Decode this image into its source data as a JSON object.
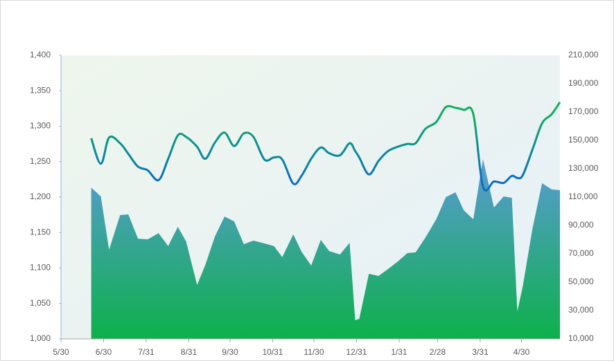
{
  "chart_data": {
    "type": "line_area",
    "x": [
      22,
      29,
      35,
      43,
      49,
      56,
      63,
      71,
      78,
      85,
      91,
      99,
      105,
      112,
      119,
      126,
      133,
      140,
      148,
      155,
      161,
      169,
      175,
      182,
      189,
      195,
      203,
      210,
      214,
      217,
      224,
      231,
      238,
      245,
      252,
      258,
      265,
      273,
      280,
      287,
      293,
      300,
      307,
      315,
      322,
      328,
      332,
      336,
      343,
      350,
      357,
      363
    ],
    "xlim": [
      0,
      363
    ],
    "xticks": [
      {
        "value": 0,
        "label": "5/30"
      },
      {
        "value": 31,
        "label": "6/30"
      },
      {
        "value": 62,
        "label": "7/31"
      },
      {
        "value": 93,
        "label": "8/31"
      },
      {
        "value": 123,
        "label": "9/30"
      },
      {
        "value": 154,
        "label": "10/31"
      },
      {
        "value": 184,
        "label": "11/30"
      },
      {
        "value": 215,
        "label": "12/31"
      },
      {
        "value": 246,
        "label": "1/31"
      },
      {
        "value": 274,
        "label": "2/28"
      },
      {
        "value": 305,
        "label": "3/31"
      },
      {
        "value": 335,
        "label": "4/30"
      }
    ],
    "ylim": [
      1000,
      1400
    ],
    "yticks": [
      {
        "value": 1000,
        "label": "1,000"
      },
      {
        "value": 1050,
        "label": "1,050"
      },
      {
        "value": 1100,
        "label": "1,100"
      },
      {
        "value": 1150,
        "label": "1,150"
      },
      {
        "value": 1200,
        "label": "1,200"
      },
      {
        "value": 1250,
        "label": "1,250"
      },
      {
        "value": 1300,
        "label": "1,300"
      },
      {
        "value": 1350,
        "label": "1,350"
      },
      {
        "value": 1400,
        "label": "1,400"
      }
    ],
    "y2lim": [
      10000,
      210000
    ],
    "y2ticks": [
      {
        "value": 10000,
        "label": "10,000"
      },
      {
        "value": 30000,
        "label": "30,000"
      },
      {
        "value": 50000,
        "label": "50,000"
      },
      {
        "value": 70000,
        "label": "70,000"
      },
      {
        "value": 90000,
        "label": "90,000"
      },
      {
        "value": 110000,
        "label": "110,000"
      },
      {
        "value": 130000,
        "label": "130,000"
      },
      {
        "value": 150000,
        "label": "150,000"
      },
      {
        "value": 170000,
        "label": "170,000"
      },
      {
        "value": 190000,
        "label": "190,000"
      },
      {
        "value": 210000,
        "label": "210,000"
      }
    ],
    "series": [
      {
        "kind": "area",
        "axis": "y2",
        "colors": [
          "#5b9bd5",
          "#0db04b"
        ],
        "values": [
          116800,
          110500,
          72900,
          97300,
          97800,
          80700,
          80200,
          84600,
          75400,
          89000,
          78800,
          48000,
          62200,
          82200,
          96300,
          92900,
          76800,
          79300,
          77300,
          75400,
          67600,
          83700,
          71500,
          61700,
          79800,
          72000,
          69500,
          77800,
          23200,
          24100,
          55900,
          54400,
          59300,
          64600,
          70500,
          71000,
          81200,
          94400,
          110000,
          113400,
          100700,
          94400,
          136800,
          102700,
          110500,
          109500,
          29500,
          47100,
          87600,
          119800,
          115400,
          114900
        ]
      },
      {
        "kind": "line",
        "axis": "y",
        "colors": [
          "#0fb05a",
          "#0a6fc2"
        ],
        "values": [
          1283,
          1247,
          1284,
          1276,
          1261,
          1243,
          1238,
          1224,
          1254,
          1287,
          1285,
          1271,
          1254,
          1277,
          1291,
          1272,
          1290,
          1285,
          1253,
          1256,
          1253,
          1219,
          1230,
          1254,
          1270,
          1262,
          1259,
          1276,
          1265,
          1256,
          1232,
          1251,
          1265,
          1271,
          1275,
          1276,
          1296,
          1306,
          1327,
          1326,
          1323,
          1317,
          1215,
          1222,
          1220,
          1230,
          1227,
          1231,
          1267,
          1304,
          1317,
          1334
        ]
      }
    ]
  }
}
